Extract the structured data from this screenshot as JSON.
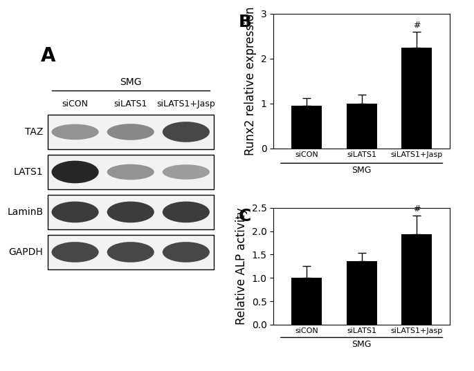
{
  "panel_a": {
    "label": "A",
    "group": "SMG",
    "lanes": [
      "siCON",
      "siLATS1",
      "siLATS1+Jasp"
    ],
    "rows": [
      {
        "name": "TAZ",
        "intensity": [
          0.5,
          0.55,
          0.85
        ]
      },
      {
        "name": "LATS1",
        "intensity": [
          1.0,
          0.5,
          0.45
        ]
      },
      {
        "name": "LaminB",
        "intensity": [
          0.9,
          0.9,
          0.9
        ]
      },
      {
        "name": "GAPDH",
        "intensity": [
          0.85,
          0.85,
          0.85
        ]
      }
    ]
  },
  "chart_data": [
    {
      "type": "bar",
      "annotations": {
        "panel": "B",
        "group": "SMG",
        "significance": [
          null,
          null,
          "#"
        ]
      },
      "y_label": "Runx2 relative expression",
      "categories": [
        "siCON",
        "siLATS1",
        "siLATS1+Jasp"
      ],
      "values": [
        0.95,
        1.0,
        2.25
      ],
      "error": [
        0.17,
        0.2,
        0.35
      ],
      "color": "#000000",
      "ylim": [
        0,
        3
      ],
      "yticks": [
        0,
        1,
        2,
        3
      ]
    },
    {
      "type": "bar",
      "annotations": {
        "panel": "C",
        "group": "SMG",
        "significance": [
          null,
          null,
          "#"
        ]
      },
      "y_label": "Relative ALP activity",
      "categories": [
        "siCON",
        "siLATS1",
        "siLATS1+Jasp"
      ],
      "values": [
        1.0,
        1.36,
        1.94
      ],
      "error": [
        0.25,
        0.18,
        0.4
      ],
      "color": "#000000",
      "ylim": [
        0.0,
        2.5
      ],
      "yticks": [
        0.0,
        0.5,
        1.0,
        1.5,
        2.0,
        2.5
      ]
    }
  ]
}
